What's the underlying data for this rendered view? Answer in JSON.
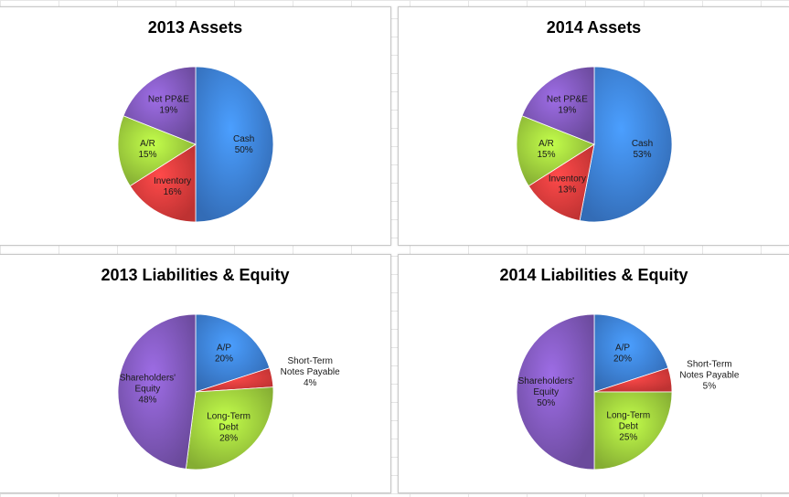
{
  "chart_data": [
    {
      "type": "pie",
      "title": "2013 Assets",
      "slices": [
        {
          "label": "Cash",
          "value": 50,
          "display": "50%",
          "color": "#3c7fd6"
        },
        {
          "label": "Inventory",
          "value": 16,
          "display": "16%",
          "color": "#e03b3b"
        },
        {
          "label": "A/R",
          "value": 15,
          "display": "15%",
          "color": "#9ccb3c"
        },
        {
          "label": "Net PP&E",
          "value": 19,
          "display": "19%",
          "color": "#7e57b8"
        }
      ]
    },
    {
      "type": "pie",
      "title": "2014 Assets",
      "slices": [
        {
          "label": "Cash",
          "value": 53,
          "display": "53%",
          "color": "#3c7fd6"
        },
        {
          "label": "Inventory",
          "value": 13,
          "display": "13%",
          "color": "#e03b3b"
        },
        {
          "label": "A/R",
          "value": 15,
          "display": "15%",
          "color": "#9ccb3c"
        },
        {
          "label": "Net PP&E",
          "value": 19,
          "display": "19%",
          "color": "#7e57b8"
        }
      ]
    },
    {
      "type": "pie",
      "title": "2013 Liabilities & Equity",
      "slices": [
        {
          "label": "A/P",
          "value": 20,
          "display": "20%",
          "color": "#3c7fd6"
        },
        {
          "label": "Short-Term Notes Payable",
          "value": 4,
          "display": "4%",
          "color": "#e03b3b"
        },
        {
          "label": "Long-Term Debt",
          "value": 28,
          "display": "28%",
          "color": "#9ccb3c"
        },
        {
          "label": "Shareholders' Equity",
          "value": 48,
          "display": "48%",
          "color": "#7e57b8"
        }
      ]
    },
    {
      "type": "pie",
      "title": "2014 Liabilities & Equity",
      "slices": [
        {
          "label": "A/P",
          "value": 20,
          "display": "20%",
          "color": "#3c7fd6"
        },
        {
          "label": "Short-Term Notes Payable",
          "value": 5,
          "display": "5%",
          "color": "#e03b3b"
        },
        {
          "label": "Long-Term Debt",
          "value": 25,
          "display": "25%",
          "color": "#9ccb3c"
        },
        {
          "label": "Shareholders' Equity",
          "value": 50,
          "display": "50%",
          "color": "#7e57b8"
        }
      ]
    }
  ]
}
